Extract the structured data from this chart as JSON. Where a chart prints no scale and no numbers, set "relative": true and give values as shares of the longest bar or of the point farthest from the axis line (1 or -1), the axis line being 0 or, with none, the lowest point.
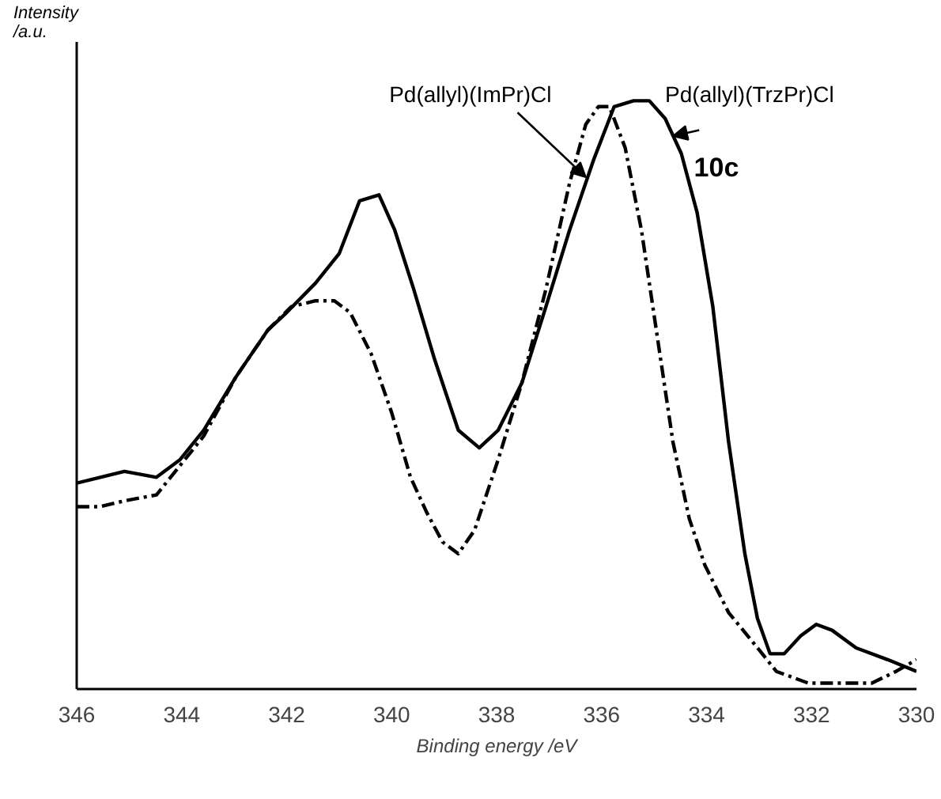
{
  "chart_data": {
    "type": "line",
    "relative": true,
    "xlabel": "Binding energy /eV",
    "ylabel": "Intensity /a.u.",
    "xlim": [
      346,
      330
    ],
    "xticks": [
      346,
      344,
      342,
      340,
      338,
      336,
      334,
      332,
      330
    ],
    "grid": false,
    "marker": "none",
    "series": [
      {
        "color": "#000000",
        "line_style": "solid",
        "x": [
          346,
          345.55,
          345.09,
          344.48,
          344.03,
          343.58,
          342.97,
          342.36,
          342.0,
          341.45,
          341.0,
          340.61,
          340.24,
          339.94,
          339.58,
          339.18,
          338.73,
          338.33,
          337.97,
          337.52,
          337.06,
          336.61,
          336.15,
          335.76,
          335.39,
          335.09,
          334.79,
          334.48,
          334.18,
          333.88,
          333.58,
          333.27,
          333.03,
          332.79,
          332.52,
          332.21,
          331.91,
          331.61,
          331.15,
          330.55,
          330.0
        ],
        "values": [
          0.35,
          0.36,
          0.37,
          0.36,
          0.39,
          0.44,
          0.53,
          0.61,
          0.64,
          0.69,
          0.74,
          0.83,
          0.84,
          0.78,
          0.68,
          0.56,
          0.44,
          0.41,
          0.44,
          0.52,
          0.65,
          0.78,
          0.9,
          0.99,
          1.0,
          1.0,
          0.97,
          0.91,
          0.81,
          0.65,
          0.42,
          0.23,
          0.12,
          0.06,
          0.06,
          0.09,
          0.11,
          0.1,
          0.07,
          0.05,
          0.03
        ]
      },
      {
        "color": "#000000",
        "line_style": "dashed",
        "x": [
          346,
          345.55,
          345.09,
          344.48,
          344.03,
          343.58,
          342.97,
          342.36,
          341.91,
          341.45,
          341.09,
          340.79,
          340.39,
          340.0,
          339.64,
          339.33,
          339.03,
          338.73,
          338.42,
          337.97,
          337.52,
          337.06,
          336.61,
          336.3,
          336.06,
          335.85,
          335.55,
          335.24,
          334.94,
          334.64,
          334.33,
          334.03,
          333.58,
          333.12,
          332.67,
          332.06,
          331.45,
          330.85,
          330.39,
          330.0
        ],
        "values": [
          0.31,
          0.31,
          0.32,
          0.33,
          0.38,
          0.43,
          0.53,
          0.61,
          0.65,
          0.66,
          0.66,
          0.64,
          0.57,
          0.47,
          0.36,
          0.3,
          0.25,
          0.23,
          0.27,
          0.39,
          0.52,
          0.68,
          0.86,
          0.96,
          0.99,
          0.99,
          0.92,
          0.78,
          0.6,
          0.42,
          0.29,
          0.21,
          0.13,
          0.08,
          0.03,
          0.01,
          0.01,
          0.01,
          0.03,
          0.05
        ]
      }
    ],
    "annotations": [
      {
        "text": "Pd(allyl)(ImPr)Cl",
        "x": 336.3,
        "y": 0.87
      },
      {
        "text": "Pd(allyl)(TrzPr)Cl",
        "x": 334.64,
        "y": 0.94
      },
      "10c"
    ]
  }
}
